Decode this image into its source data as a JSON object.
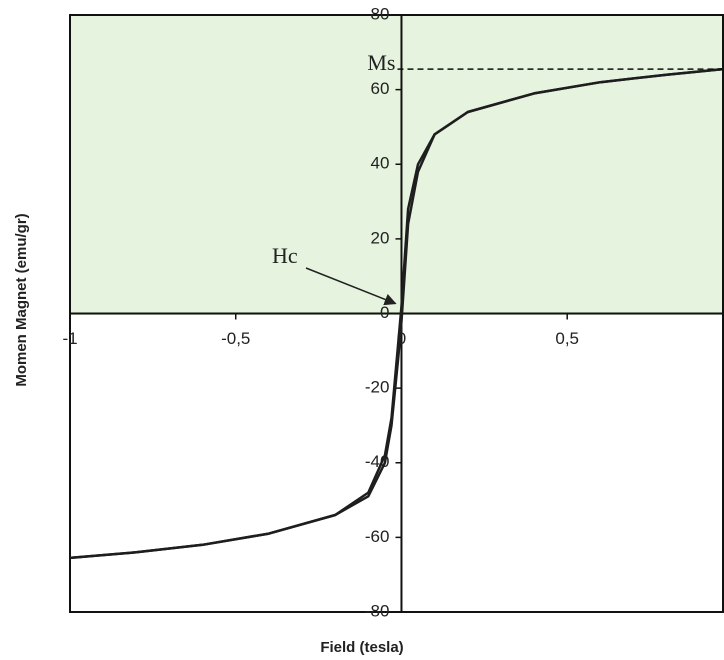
{
  "chart_data": {
    "type": "line",
    "xlabel": "Field (tesla)",
    "ylabel": "Momen Magnet (emu/gr)",
    "x": [
      -1,
      -0.8,
      -0.6,
      -0.4,
      -0.2,
      -0.1,
      -0.05,
      -0.03,
      -0.01,
      0,
      0.02,
      0.05,
      0.1,
      0.2,
      0.4,
      0.6,
      0.8,
      0.97
    ],
    "series": [
      {
        "color": "#1e1e1e",
        "values": [
          -65.5,
          -64,
          -62,
          -59,
          -54,
          -48,
          -38,
          -28,
          -8,
          2,
          28,
          40,
          48,
          54,
          59,
          62,
          64,
          65.5
        ]
      },
      {
        "color": "#1e1e1e",
        "values": [
          -65.5,
          -64,
          -62,
          -59,
          -54,
          -49,
          -40,
          -30,
          -12,
          -2,
          24,
          38,
          48,
          54,
          59,
          62,
          64,
          65.5
        ]
      }
    ],
    "xlim": [
      -1,
      0.97
    ],
    "ylim": [
      -80,
      80
    ],
    "xticks": [
      -1,
      {
        "value": -0.5,
        "label": "-0,5"
      },
      0,
      {
        "value": 0.5,
        "label": "0,5"
      }
    ],
    "yticks": [
      -80,
      -60,
      -40,
      -20,
      0,
      20,
      40,
      60,
      80
    ],
    "grid": false,
    "ms_value": 65.5,
    "annotations": [
      "Ms",
      "Hc"
    ]
  }
}
